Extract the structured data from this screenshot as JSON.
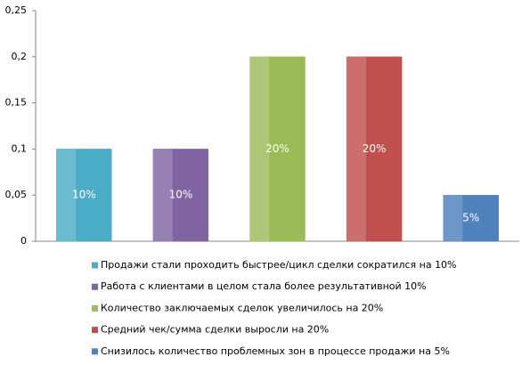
{
  "chart_data": {
    "type": "bar",
    "categories": [
      null
    ],
    "series": [
      {
        "name": "Продажи стали проходить быстрее/цикл сделки сократился на 10%",
        "color": "#4bacc6",
        "values": [
          0.1
        ],
        "value_labels": [
          "10%"
        ]
      },
      {
        "name": "Работа с клиентами в целом стала более результативной 10%",
        "color": "#8064a2",
        "values": [
          0.1
        ],
        "value_labels": [
          "10%"
        ]
      },
      {
        "name": "Количество заключаемых сделок увеличилось на 20%",
        "color": "#9bbb59",
        "values": [
          0.2
        ],
        "value_labels": [
          "20%"
        ]
      },
      {
        "name": "Средний чек/сумма сделки выросли на 20%",
        "color": "#c0504d",
        "values": [
          0.2
        ],
        "value_labels": [
          "20%"
        ]
      },
      {
        "name": "Снизилось количество проблемных зон в процессе продажи на 5%",
        "color": "#4f81bd",
        "values": [
          0.05
        ],
        "value_labels": [
          "5%"
        ]
      }
    ],
    "ylim": [
      0,
      0.25
    ],
    "yticks": [
      0,
      {
        "value": 0.05,
        "label": "0,05"
      },
      {
        "value": 0.1,
        "label": "0,1"
      },
      {
        "value": 0.15,
        "label": "0,15"
      },
      {
        "value": 0.2,
        "label": "0,2"
      },
      {
        "value": 0.25,
        "label": "0,25"
      }
    ],
    "grid": false,
    "legend": "bottom"
  }
}
